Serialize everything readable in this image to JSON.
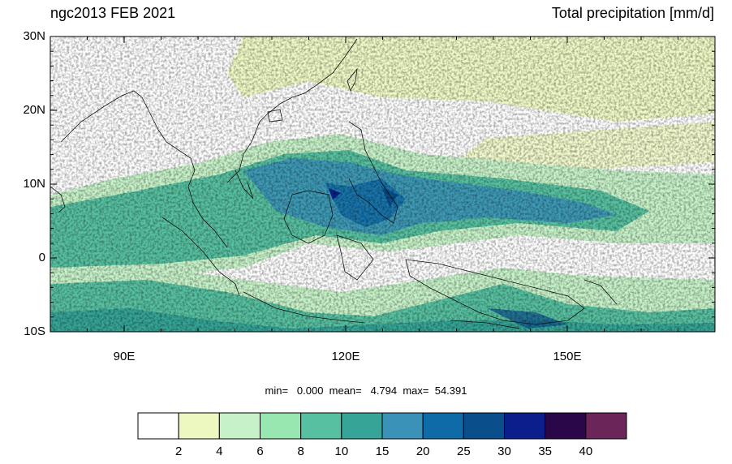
{
  "titles": {
    "left": "ngc2013 FEB 2021",
    "right": "Total precipitation [mm/d]"
  },
  "axes": {
    "lon_range": [
      80,
      170
    ],
    "lat_range": [
      -10,
      30
    ],
    "lat_ticks": [
      {
        "value": 30,
        "label": "30N"
      },
      {
        "value": 20,
        "label": "20N"
      },
      {
        "value": 10,
        "label": "10N"
      },
      {
        "value": 0,
        "label": "0"
      },
      {
        "value": -10,
        "label": "10S"
      }
    ],
    "lon_ticks": [
      {
        "value": 90,
        "label": "90E"
      },
      {
        "value": 120,
        "label": "120E"
      },
      {
        "value": 150,
        "label": "150E"
      }
    ]
  },
  "stats": {
    "text": "min=   0.000  mean=   4.794  max=  54.391",
    "min": 0.0,
    "mean": 4.794,
    "max": 54.391
  },
  "colorbar": {
    "levels": [
      "2",
      "4",
      "6",
      "8",
      "10",
      "15",
      "20",
      "25",
      "30",
      "35",
      "40"
    ],
    "colors": [
      "#ffffff",
      "#edf8c0",
      "#c7f2c9",
      "#98e6b0",
      "#57c0a0",
      "#36a497",
      "#3a92b8",
      "#0f6aa8",
      "#0a4e8c",
      "#0b1e8c",
      "#2a0748",
      "#6b2558"
    ]
  }
}
